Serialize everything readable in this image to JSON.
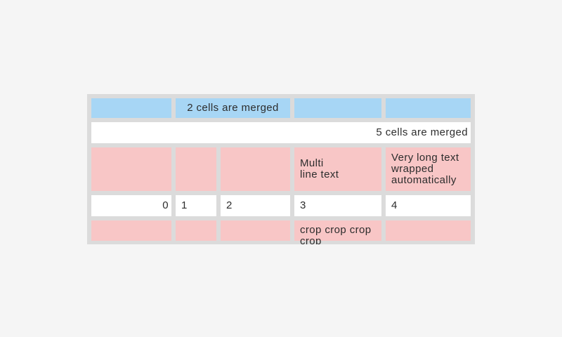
{
  "page": {
    "background_color": "#f5f5f5"
  },
  "table": {
    "widget": "table",
    "colors": {
      "grid_background": "#dbdbdb",
      "header_cell": "#a7d6f5",
      "highlight_cell": "#f8c6c6",
      "normal_cell": "#ffffff",
      "text": "#2d2d2d"
    },
    "columns_count": 5,
    "merges": {
      "row1": "columns 2-3 merged",
      "row2": "columns 1-5 merged"
    },
    "rows": [
      {
        "style": "blue",
        "cells": [
          {
            "text": ""
          },
          {
            "text": "2 cells are merged",
            "align": "center",
            "span": 2
          },
          {
            "text": ""
          },
          {
            "text": ""
          }
        ]
      },
      {
        "style": "white",
        "cells": [
          {
            "text": "5 cells are merged",
            "align": "right",
            "span": 5
          }
        ]
      },
      {
        "style": "pink",
        "cells": [
          {
            "text": ""
          },
          {
            "text": ""
          },
          {
            "text": ""
          },
          {
            "text": "Multi\nline text"
          },
          {
            "text": "Very long text wrapped automatically"
          }
        ]
      },
      {
        "style": "white",
        "cells": [
          {
            "text": "0",
            "align": "right"
          },
          {
            "text": "1"
          },
          {
            "text": "2"
          },
          {
            "text": "3"
          },
          {
            "text": "4"
          }
        ]
      },
      {
        "style": "pink",
        "cells": [
          {
            "text": ""
          },
          {
            "text": ""
          },
          {
            "text": ""
          },
          {
            "text": "crop crop crop crop",
            "clipped": true
          },
          {
            "text": ""
          }
        ]
      }
    ]
  }
}
